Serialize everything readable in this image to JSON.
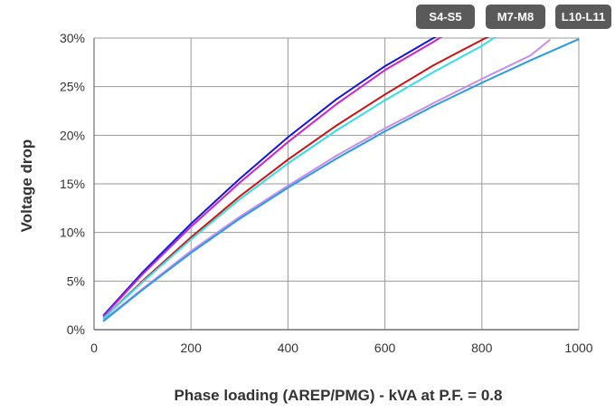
{
  "tabs": [
    {
      "label": "S4-S5"
    },
    {
      "label": "M7-M8"
    },
    {
      "label": "L10-L11"
    }
  ],
  "chart_data": {
    "type": "line",
    "xlabel": "Phase loading (AREP/PMG) - kVA at P.F. = 0.8",
    "ylabel": "Voltage drop",
    "xlim": [
      0,
      1000
    ],
    "ylim": [
      0,
      30
    ],
    "xticks": [
      0,
      200,
      400,
      600,
      800,
      1000
    ],
    "xtick_labels": [
      "0",
      "200",
      "400",
      "600",
      "800",
      "1000"
    ],
    "yticks": [
      0,
      5,
      10,
      15,
      20,
      25,
      30
    ],
    "ytick_labels": [
      "0%",
      "5%",
      "10%",
      "15%",
      "20%",
      "25%",
      "30%"
    ],
    "grid": true,
    "series": [
      {
        "color": "#1515d8",
        "x": [
          20,
          100,
          200,
          300,
          400,
          500,
          600,
          700,
          718
        ],
        "y": [
          1.5,
          5.9,
          10.9,
          15.5,
          19.8,
          23.7,
          27.1,
          30.0,
          30.5
        ]
      },
      {
        "color": "#cc22cc",
        "x": [
          20,
          100,
          200,
          300,
          400,
          500,
          600,
          700,
          728
        ],
        "y": [
          1.4,
          5.7,
          10.6,
          15.1,
          19.3,
          23.2,
          26.7,
          29.6,
          30.5
        ]
      },
      {
        "color": "#cc1111",
        "x": [
          20,
          100,
          200,
          300,
          400,
          500,
          600,
          700,
          800,
          828
        ],
        "y": [
          1.2,
          5.0,
          9.5,
          13.7,
          17.5,
          21.0,
          24.2,
          27.2,
          29.8,
          30.5
        ]
      },
      {
        "color": "#33dde8",
        "x": [
          20,
          100,
          200,
          300,
          400,
          500,
          600,
          700,
          800,
          840
        ],
        "y": [
          1.2,
          4.9,
          9.3,
          13.4,
          17.1,
          20.5,
          23.6,
          26.5,
          29.2,
          30.5
        ]
      },
      {
        "color": "#c48ef0",
        "x": [
          20,
          100,
          200,
          300,
          400,
          500,
          600,
          700,
          800,
          900,
          940
        ],
        "y": [
          1.0,
          4.2,
          8.1,
          11.6,
          14.8,
          17.9,
          20.7,
          23.3,
          25.8,
          28.2,
          29.8
        ]
      },
      {
        "color": "#2a9be0",
        "x": [
          20,
          100,
          200,
          300,
          400,
          500,
          600,
          700,
          800,
          900,
          1000
        ],
        "y": [
          0.9,
          4.1,
          7.9,
          11.4,
          14.6,
          17.6,
          20.4,
          23.0,
          25.4,
          27.7,
          29.9
        ]
      }
    ]
  }
}
